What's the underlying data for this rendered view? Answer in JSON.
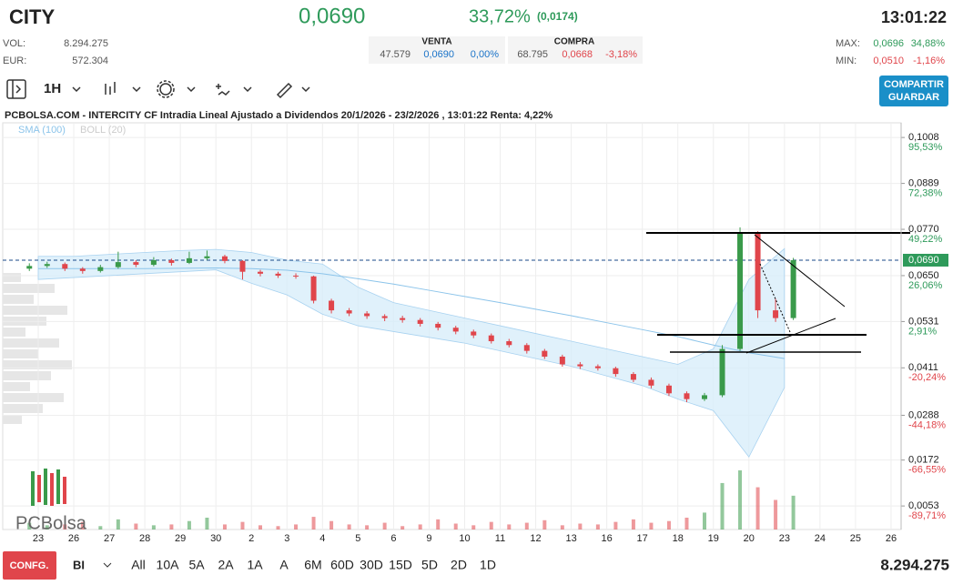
{
  "header": {
    "symbol": "CITY",
    "price": "0,0690",
    "change_pct": "33,72%",
    "change_abs": "(0,0174)",
    "time": "13:01:22",
    "vol_label": "VOL:",
    "vol": "8.294.275",
    "eur_label": "EUR:",
    "eur": "572.304",
    "venta": {
      "label": "VENTA",
      "qty": "47.579",
      "price": "0,0690",
      "pct": "0,00%"
    },
    "compra": {
      "label": "COMPRA",
      "qty": "68.795",
      "price": "0,0668",
      "pct": "-3,18%"
    },
    "max_label": "MAX:",
    "max": "0,0696",
    "max_pct": "34,88%",
    "min_label": "MIN:",
    "min": "0,0510",
    "min_pct": "-1,16%"
  },
  "toolbar": {
    "interval": "1H",
    "share": "COMPARTIR",
    "save": "GUARDAR"
  },
  "chart_data": {
    "type": "candlestick",
    "title": "PCBOLSA.COM - INTERCITY CF Intradia Lineal Ajustado a Dividendos 20/1/2026 - 23/2/2026 , 13:01:22 Renta: 4,22%",
    "legend": [
      "SMA (100)",
      "BOLL (20)"
    ],
    "logo": "PCBolsa",
    "categories": [
      "23",
      "26",
      "27",
      "28",
      "29",
      "30",
      "2",
      "3",
      "4",
      "5",
      "6",
      "9",
      "10",
      "11",
      "12",
      "13",
      "16",
      "17",
      "18",
      "19",
      "20",
      "23",
      "24",
      "25",
      "26"
    ],
    "ylim": [
      -0.0008,
      0.1046
    ],
    "yticks": [
      {
        "value": 0.1008,
        "label": "0,1008"
      },
      {
        "value": 0.0889,
        "label": "0,0889"
      },
      {
        "value": 0.077,
        "label": "0,0770"
      },
      {
        "value": 0.065,
        "label": "0,0650"
      },
      {
        "value": 0.0531,
        "label": "0,0531"
      },
      {
        "value": 0.0411,
        "label": "0,0411"
      },
      {
        "value": 0.0288,
        "label": "0,0288"
      },
      {
        "value": 0.0172,
        "label": "0,0172"
      },
      {
        "value": 0.0053,
        "label": "0,0053"
      }
    ],
    "y2lim": [
      -101.6,
      102.9
    ],
    "y2ticks": [
      {
        "value": 95.53,
        "label": "95,53%"
      },
      {
        "value": 72.38,
        "label": "72,38%"
      },
      {
        "value": 49.22,
        "label": "49,22%"
      },
      {
        "value": 26.06,
        "label": "26,06%"
      },
      {
        "value": 2.91,
        "label": "2,91%"
      },
      {
        "value": -20.24,
        "label": "-20,24%"
      },
      {
        "value": -44.18,
        "label": "-44,18%"
      },
      {
        "value": -66.55,
        "label": "-66,55%"
      },
      {
        "value": -89.71,
        "label": "-89,71%"
      }
    ],
    "last_price": {
      "value": 0.069,
      "label": "0,0690"
    },
    "candles": {
      "x": [
        -0.25,
        0.25,
        0.75,
        1.25,
        1.75,
        2.25,
        2.75,
        3.25,
        3.75,
        4.25,
        4.75,
        5.25,
        5.75,
        6.25,
        6.75,
        7.25,
        7.75,
        8.25,
        8.75,
        9.25,
        9.75,
        10.25,
        10.75,
        11.25,
        11.75,
        12.25,
        12.75,
        13.25,
        13.75,
        14.25,
        14.75,
        15.25,
        15.75,
        16.25,
        16.75,
        17.25,
        17.75,
        18.25,
        18.75,
        19.25,
        19.75,
        20.25,
        20.75,
        21.25
      ],
      "open": [
        0.0668,
        0.0675,
        0.068,
        0.0668,
        0.0662,
        0.0672,
        0.0685,
        0.0678,
        0.069,
        0.0683,
        0.0695,
        0.07,
        0.0688,
        0.066,
        0.0655,
        0.065,
        0.0648,
        0.0585,
        0.056,
        0.0552,
        0.0545,
        0.054,
        0.0535,
        0.0525,
        0.0515,
        0.0505,
        0.0495,
        0.048,
        0.047,
        0.0455,
        0.044,
        0.042,
        0.0415,
        0.041,
        0.0395,
        0.038,
        0.0365,
        0.0345,
        0.033,
        0.034,
        0.046,
        0.076,
        0.056,
        0.054
      ],
      "high": [
        0.0682,
        0.0686,
        0.0684,
        0.0672,
        0.0678,
        0.0712,
        0.069,
        0.0698,
        0.0694,
        0.0712,
        0.0715,
        0.0704,
        0.069,
        0.0665,
        0.066,
        0.0656,
        0.065,
        0.059,
        0.0566,
        0.0558,
        0.055,
        0.0546,
        0.054,
        0.053,
        0.052,
        0.051,
        0.05,
        0.0486,
        0.0475,
        0.046,
        0.0445,
        0.0426,
        0.042,
        0.0414,
        0.04,
        0.0386,
        0.037,
        0.035,
        0.0346,
        0.047,
        0.0775,
        0.0765,
        0.059,
        0.0696
      ],
      "low": [
        0.0662,
        0.067,
        0.0662,
        0.0655,
        0.0658,
        0.0668,
        0.0672,
        0.0674,
        0.0676,
        0.068,
        0.069,
        0.0682,
        0.064,
        0.0648,
        0.0644,
        0.0642,
        0.0578,
        0.0552,
        0.0545,
        0.0538,
        0.0532,
        0.0528,
        0.0518,
        0.0508,
        0.0498,
        0.0488,
        0.0474,
        0.0464,
        0.0448,
        0.0434,
        0.0414,
        0.0408,
        0.0404,
        0.0388,
        0.0374,
        0.0358,
        0.0338,
        0.0322,
        0.0325,
        0.0335,
        0.0455,
        0.054,
        0.053,
        0.0535
      ],
      "close": [
        0.0675,
        0.068,
        0.0668,
        0.0662,
        0.0672,
        0.0685,
        0.0678,
        0.069,
        0.0683,
        0.0695,
        0.07,
        0.0688,
        0.066,
        0.0655,
        0.065,
        0.0648,
        0.0585,
        0.056,
        0.0552,
        0.0545,
        0.054,
        0.0535,
        0.0525,
        0.0515,
        0.0505,
        0.0495,
        0.048,
        0.047,
        0.0455,
        0.044,
        0.042,
        0.0415,
        0.041,
        0.0395,
        0.038,
        0.0365,
        0.0345,
        0.033,
        0.034,
        0.046,
        0.076,
        0.056,
        0.054,
        0.069
      ],
      "volume": [
        8,
        5,
        6,
        9,
        4,
        12,
        7,
        5,
        6,
        10,
        14,
        6,
        9,
        5,
        4,
        6,
        15,
        10,
        6,
        5,
        8,
        4,
        6,
        12,
        7,
        5,
        9,
        6,
        8,
        11,
        5,
        7,
        6,
        9,
        12,
        8,
        10,
        14,
        20,
        55,
        70,
        50,
        35,
        40
      ]
    },
    "boll": {
      "x": [
        0,
        1,
        2,
        3,
        4,
        5,
        6,
        7,
        8,
        9,
        10,
        11,
        12,
        13,
        14,
        15,
        16,
        17,
        18,
        19,
        20,
        21
      ],
      "upper": [
        0.07,
        0.07,
        0.0705,
        0.071,
        0.0715,
        0.0718,
        0.071,
        0.069,
        0.068,
        0.062,
        0.058,
        0.056,
        0.054,
        0.052,
        0.05,
        0.048,
        0.046,
        0.044,
        0.042,
        0.046,
        0.064,
        0.072
      ],
      "lower": [
        0.064,
        0.0645,
        0.065,
        0.0655,
        0.066,
        0.0665,
        0.063,
        0.06,
        0.055,
        0.052,
        0.0505,
        0.049,
        0.0475,
        0.0455,
        0.0435,
        0.0415,
        0.039,
        0.0365,
        0.033,
        0.03,
        0.018,
        0.036
      ],
      "sma": [
        0.0668,
        0.0668,
        0.0668,
        0.0668,
        0.0669,
        0.067,
        0.0668,
        0.0664,
        0.0655,
        0.0642,
        0.0628,
        0.0612,
        0.0596,
        0.058,
        0.0563,
        0.0546,
        0.0528,
        0.051,
        0.0492,
        0.047,
        0.045,
        0.0435
      ]
    },
    "up_color": "#3a9a4a",
    "down_color": "#e0454b",
    "band_color": "#d6ecfa",
    "sma_color": "#8cc4ea"
  },
  "footer": {
    "config": "CONFG.",
    "mode": "BI",
    "periods": [
      "All",
      "10A",
      "5A",
      "2A",
      "1A",
      "A",
      "6M",
      "60D",
      "30D",
      "15D",
      "5D",
      "2D",
      "1D"
    ],
    "volume": "8.294.275"
  }
}
